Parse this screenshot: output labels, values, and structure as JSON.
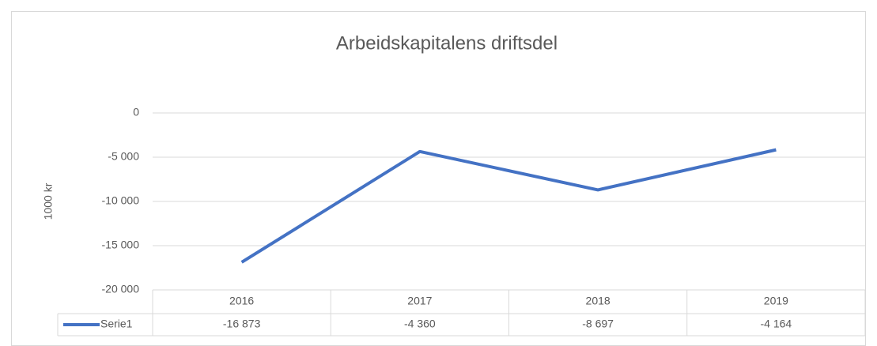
{
  "chart_data": {
    "type": "line",
    "title": "Arbeidskapitalens driftsdel",
    "y_label": "1000 kr",
    "categories": [
      "2016",
      "2017",
      "2018",
      "2019"
    ],
    "series": [
      {
        "name": "Serie1",
        "color": "#4472c4",
        "values": [
          -16873,
          -4360,
          -8697,
          -4164
        ],
        "value_labels": [
          "-16 873",
          "-4 360",
          "-8 697",
          "-4 164"
        ]
      }
    ],
    "ylim": [
      -20000,
      0
    ],
    "yticks": [
      {
        "value": -20000,
        "label": "-20 000"
      },
      {
        "value": -15000,
        "label": "-15 000"
      },
      {
        "value": -10000,
        "label": "-10 000"
      },
      {
        "value": -5000,
        "label": "-5 000"
      },
      0
    ],
    "grid": true,
    "data_table": true
  }
}
